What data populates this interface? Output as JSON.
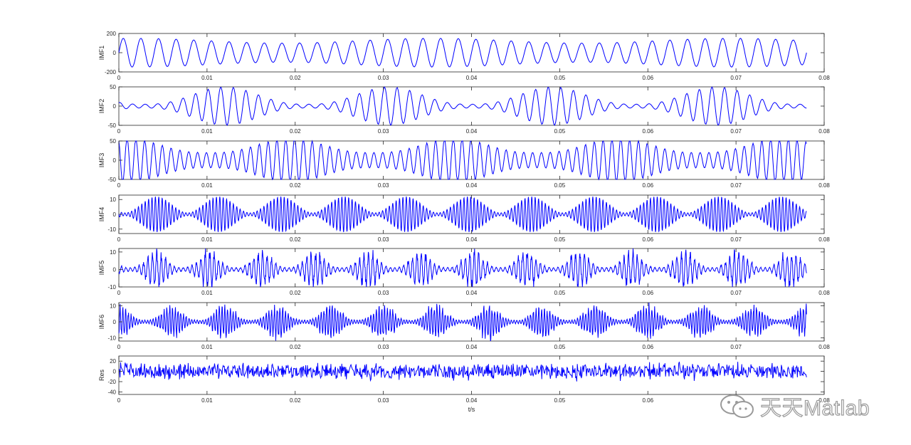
{
  "chart_data": [
    {
      "type": "line",
      "ylabel": "IMF1",
      "yticks": [
        "200",
        "0",
        "-200"
      ],
      "ylim": [
        -200,
        200
      ],
      "xlim": [
        0,
        0.08
      ],
      "xticks": [
        "0",
        "0.01",
        "0.02",
        "0.03",
        "0.04",
        "0.05",
        "0.06",
        "0.07",
        "0.08"
      ],
      "series": [
        {
          "color": "#0000ff",
          "x_range": [
            0,
            0.078
          ],
          "samples": 800,
          "freq_hz": 500,
          "amplitude": [
            100,
            150
          ],
          "envelope": "near-constant"
        }
      ]
    },
    {
      "type": "line",
      "ylabel": "IMF2",
      "yticks": [
        "50",
        "0",
        "-50"
      ],
      "ylim": [
        -50,
        50
      ],
      "xlim": [
        0,
        0.08
      ],
      "xticks": [
        "0",
        "0.01",
        "0.02",
        "0.03",
        "0.04",
        "0.05",
        "0.06",
        "0.07",
        "0.08"
      ],
      "series": [
        {
          "color": "#0000ff",
          "x_range": [
            0,
            0.078
          ],
          "samples": 800,
          "freq_hz": 700,
          "amplitude": [
            5,
            50
          ],
          "envelope": "modulated"
        }
      ]
    },
    {
      "type": "line",
      "ylabel": "IMF3",
      "yticks": [
        "50",
        "0",
        "-50"
      ],
      "ylim": [
        -50,
        50
      ],
      "xlim": [
        0,
        0.08
      ],
      "xticks": [
        "0",
        "0.01",
        "0.02",
        "0.03",
        "0.04",
        "0.05",
        "0.06",
        "0.07",
        "0.08"
      ],
      "series": [
        {
          "color": "#0000ff",
          "x_range": [
            0,
            0.078
          ],
          "samples": 900,
          "freq_hz": 1000,
          "amplitude": [
            20,
            58
          ],
          "envelope": "modulated"
        }
      ]
    },
    {
      "type": "line",
      "ylabel": "IMF4",
      "yticks": [
        "10",
        "0",
        "-10"
      ],
      "ylim": [
        -13,
        13
      ],
      "xlim": [
        0,
        0.08
      ],
      "xticks": [
        "0",
        "0.01",
        "0.02",
        "0.03",
        "0.04",
        "0.05",
        "0.06",
        "0.07",
        "0.08"
      ],
      "series": [
        {
          "color": "#0000ff",
          "x_range": [
            0,
            0.078
          ],
          "samples": 2500,
          "freq_hz": 2600,
          "amplitude": [
            1,
            12
          ],
          "envelope": "bursts"
        }
      ]
    },
    {
      "type": "line",
      "ylabel": "IMF5",
      "yticks": [
        "10",
        "0",
        "-10"
      ],
      "ylim": [
        -10,
        12
      ],
      "xlim": [
        0,
        0.08
      ],
      "xticks": [
        "0",
        "0.01",
        "0.02",
        "0.03",
        "0.04",
        "0.05",
        "0.06",
        "0.07",
        "0.08"
      ],
      "series": [
        {
          "color": "#0000ff",
          "x_range": [
            0,
            0.078
          ],
          "samples": 2200,
          "freq_hz": 2000,
          "amplitude": [
            1,
            11
          ],
          "envelope": "bursts-noisy"
        }
      ]
    },
    {
      "type": "line",
      "ylabel": "IMF6",
      "yticks": [
        "10",
        "0",
        "-10"
      ],
      "ylim": [
        -12,
        12
      ],
      "xlim": [
        0,
        0.08
      ],
      "xticks": [
        "0",
        "0.01",
        "0.02",
        "0.03",
        "0.04",
        "0.05",
        "0.06",
        "0.07",
        "0.08"
      ],
      "series": [
        {
          "color": "#0000ff",
          "x_range": [
            0,
            0.078
          ],
          "samples": 2200,
          "freq_hz": 3200,
          "amplitude": [
            1,
            11
          ],
          "envelope": "bursts-noisy"
        }
      ]
    },
    {
      "type": "line",
      "ylabel": "Res",
      "xlabel": "t/s",
      "yticks": [
        "20",
        "0",
        "-20",
        "-40"
      ],
      "ylim": [
        -45,
        30
      ],
      "xlim": [
        0,
        0.08
      ],
      "xticks": [
        "0",
        "0.01",
        "0.02",
        "0.03",
        "0.04",
        "0.05",
        "0.06",
        "0.07",
        "0.08"
      ],
      "series": [
        {
          "color": "#0000ff",
          "x_range": [
            0,
            0.078
          ],
          "samples": 1200,
          "amplitude": [
            10,
            30
          ],
          "envelope": "noise"
        }
      ]
    }
  ],
  "watermark": {
    "text": "天天Matlab",
    "icon": "wechat-icon"
  }
}
